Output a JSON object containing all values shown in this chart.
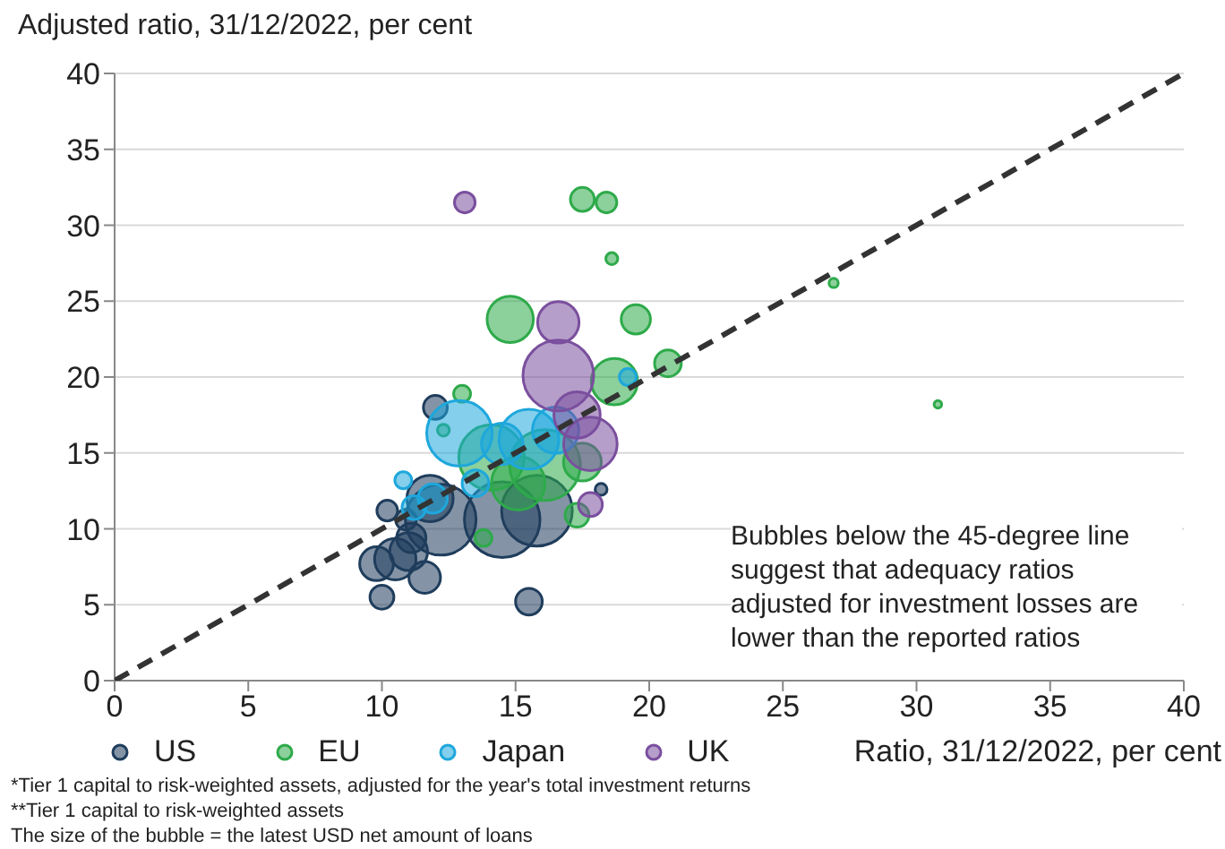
{
  "chart_data": {
    "type": "bubble",
    "ylabel": "Adjusted ratio, 31/12/2022, per cent",
    "xlabel": "Ratio, 31/12/2022, per cent",
    "xlim": [
      0,
      40
    ],
    "xticks": [
      0,
      5,
      10,
      15,
      20,
      25,
      30,
      35,
      40
    ],
    "ylim": [
      0,
      40
    ],
    "yticks": [
      0,
      5,
      10,
      15,
      20,
      25,
      30,
      35,
      40
    ],
    "grid": "y",
    "legend": "bottom",
    "annotations": [
      "Bubbles below the 45-degree line suggest that adequacy ratios adjusted for investment losses are lower than the reported ratios",
      "*Tier 1 capital to risk-weighted assets, adjusted for the year's total investment returns",
      "**Tier 1 capital to risk-weighted assets",
      "The size of the bubble =  the latest USD net amount of loans"
    ],
    "series": [
      {
        "name": "US",
        "color": "#1f3d5c",
        "x": [
          15.5,
          11.6,
          10.0,
          10.5,
          9.8,
          11.0,
          12.2,
          14.5,
          15.8,
          11.8,
          10.2,
          12.0,
          18.2,
          11.1,
          10.9
        ],
        "values": [
          5.2,
          6.8,
          5.5,
          8.0,
          7.7,
          8.5,
          10.6,
          10.6,
          11.2,
          12.0,
          11.2,
          18.0,
          12.6,
          9.4,
          10.6
        ],
        "sizes": [
          0.125,
          0.175,
          0.1,
          0.3,
          0.2,
          0.25,
          0.875,
          1,
          0.875,
          0.375,
          0.075,
          0.1,
          0.025,
          0.15,
          0.075
        ]
      },
      {
        "name": "EU",
        "color": "#2eaa4a",
        "x": [
          17.5,
          18.4,
          18.6,
          26.9,
          30.8,
          14.8,
          19.5,
          18.7,
          20.7,
          13.0,
          14.1,
          16.1,
          15.1,
          17.3,
          13.8,
          17.5,
          12.3
        ],
        "values": [
          31.7,
          31.5,
          27.8,
          26.2,
          18.2,
          23.8,
          23.8,
          19.7,
          20.9,
          18.9,
          14.7,
          14.2,
          13.0,
          10.9,
          9.4,
          14.4,
          16.5
        ],
        "sizes": [
          0.1,
          0.075,
          0.025,
          0.015,
          0.01,
          0.375,
          0.15,
          0.375,
          0.125,
          0.05,
          0.75,
          0.875,
          0.5,
          0.1,
          0.05,
          0.25,
          0.025
        ]
      },
      {
        "name": "Japan",
        "color": "#1ea7dc",
        "x": [
          12.9,
          15.5,
          16.5,
          14.5,
          11.9,
          11.2,
          19.2,
          13.5,
          10.8
        ],
        "values": [
          16.3,
          15.9,
          16.5,
          15.6,
          12.0,
          11.4,
          20.0,
          13.0,
          13.2
        ],
        "sizes": [
          0.75,
          0.625,
          0.375,
          0.3,
          0.15,
          0.1,
          0.05,
          0.125,
          0.05
        ]
      },
      {
        "name": "UK",
        "color": "#7a4f9e",
        "x": [
          13.1,
          16.6,
          16.6,
          17.3,
          17.8,
          17.8
        ],
        "values": [
          31.5,
          23.6,
          20.1,
          17.5,
          15.6,
          11.6
        ],
        "sizes": [
          0.075,
          0.3,
          0.875,
          0.375,
          0.5,
          0.1
        ]
      },
      {
        "type": "line",
        "color": "#333333",
        "line_style": "dashed",
        "x": [
          0,
          40
        ],
        "values": [
          0,
          40
        ]
      }
    ]
  }
}
